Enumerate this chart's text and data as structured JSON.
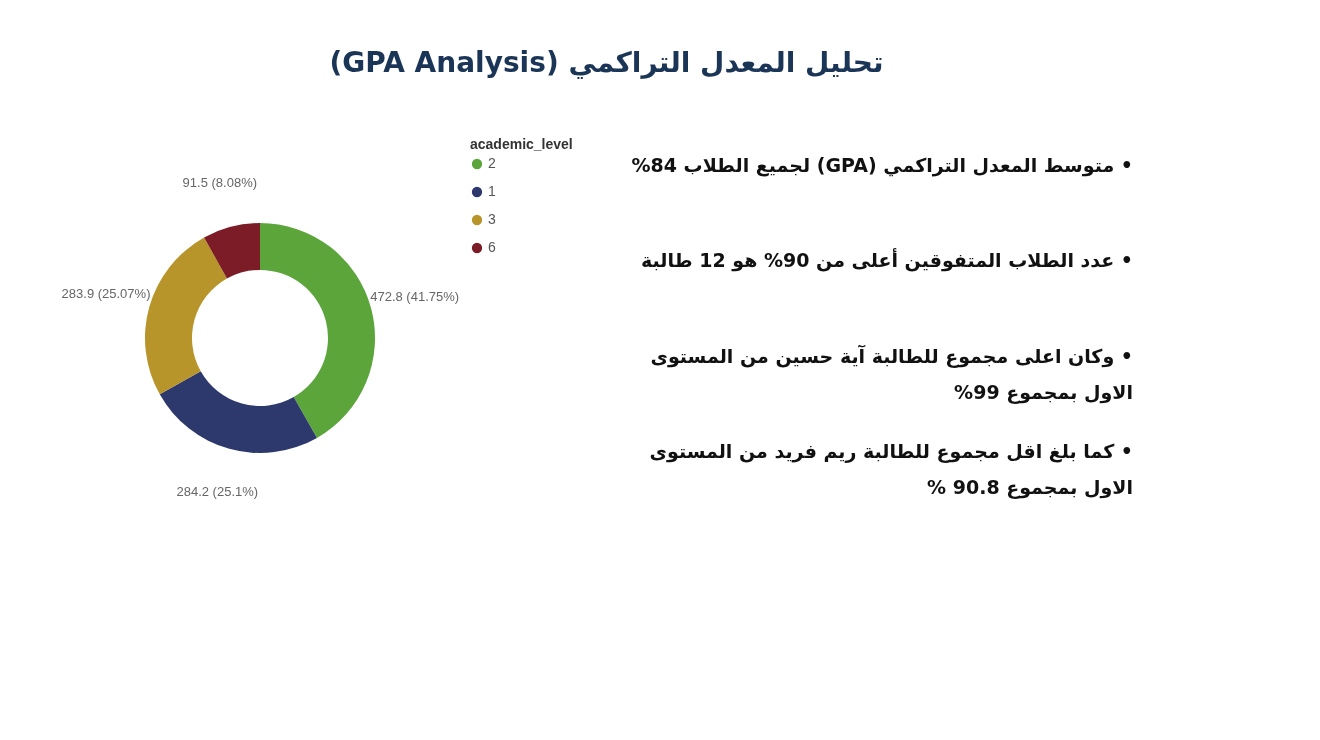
{
  "chart_data": [
    {
      "type": "donut",
      "title": "تحليل المعدل التراكمي (GPA Analysis)",
      "legend_title": "academic_level",
      "legend": "right",
      "categories": [
        "2",
        "1",
        "3",
        "6"
      ],
      "values": [
        472.8,
        284.2,
        283.9,
        91.5
      ],
      "colors": [
        "#5ba53b",
        "#2d386c",
        "#b8952a",
        "#7b1c26"
      ],
      "value_labels": [
        "472.8 (41.75%)",
        "284.2 (25.1%)",
        "283.9 (25.07%)",
        "91.5 (8.08%)"
      ]
    },
    {
      "type": "other",
      "annotations": [
        "• متوسط المعدل التراكمي (GPA) لجميع الطلاب 84%",
        "• عدد الطلاب المتفوقين أعلى من 90% هو 12 طالبة",
        "• وكان اعلى مجموع للطالبة آية حسين من المستوى\nالاول بمجموع 99%",
        "• كما بلغ اقل مجموع للطالبة ريم فريد من المستوى\nالاول بمجموع 90.8 %"
      ]
    }
  ]
}
